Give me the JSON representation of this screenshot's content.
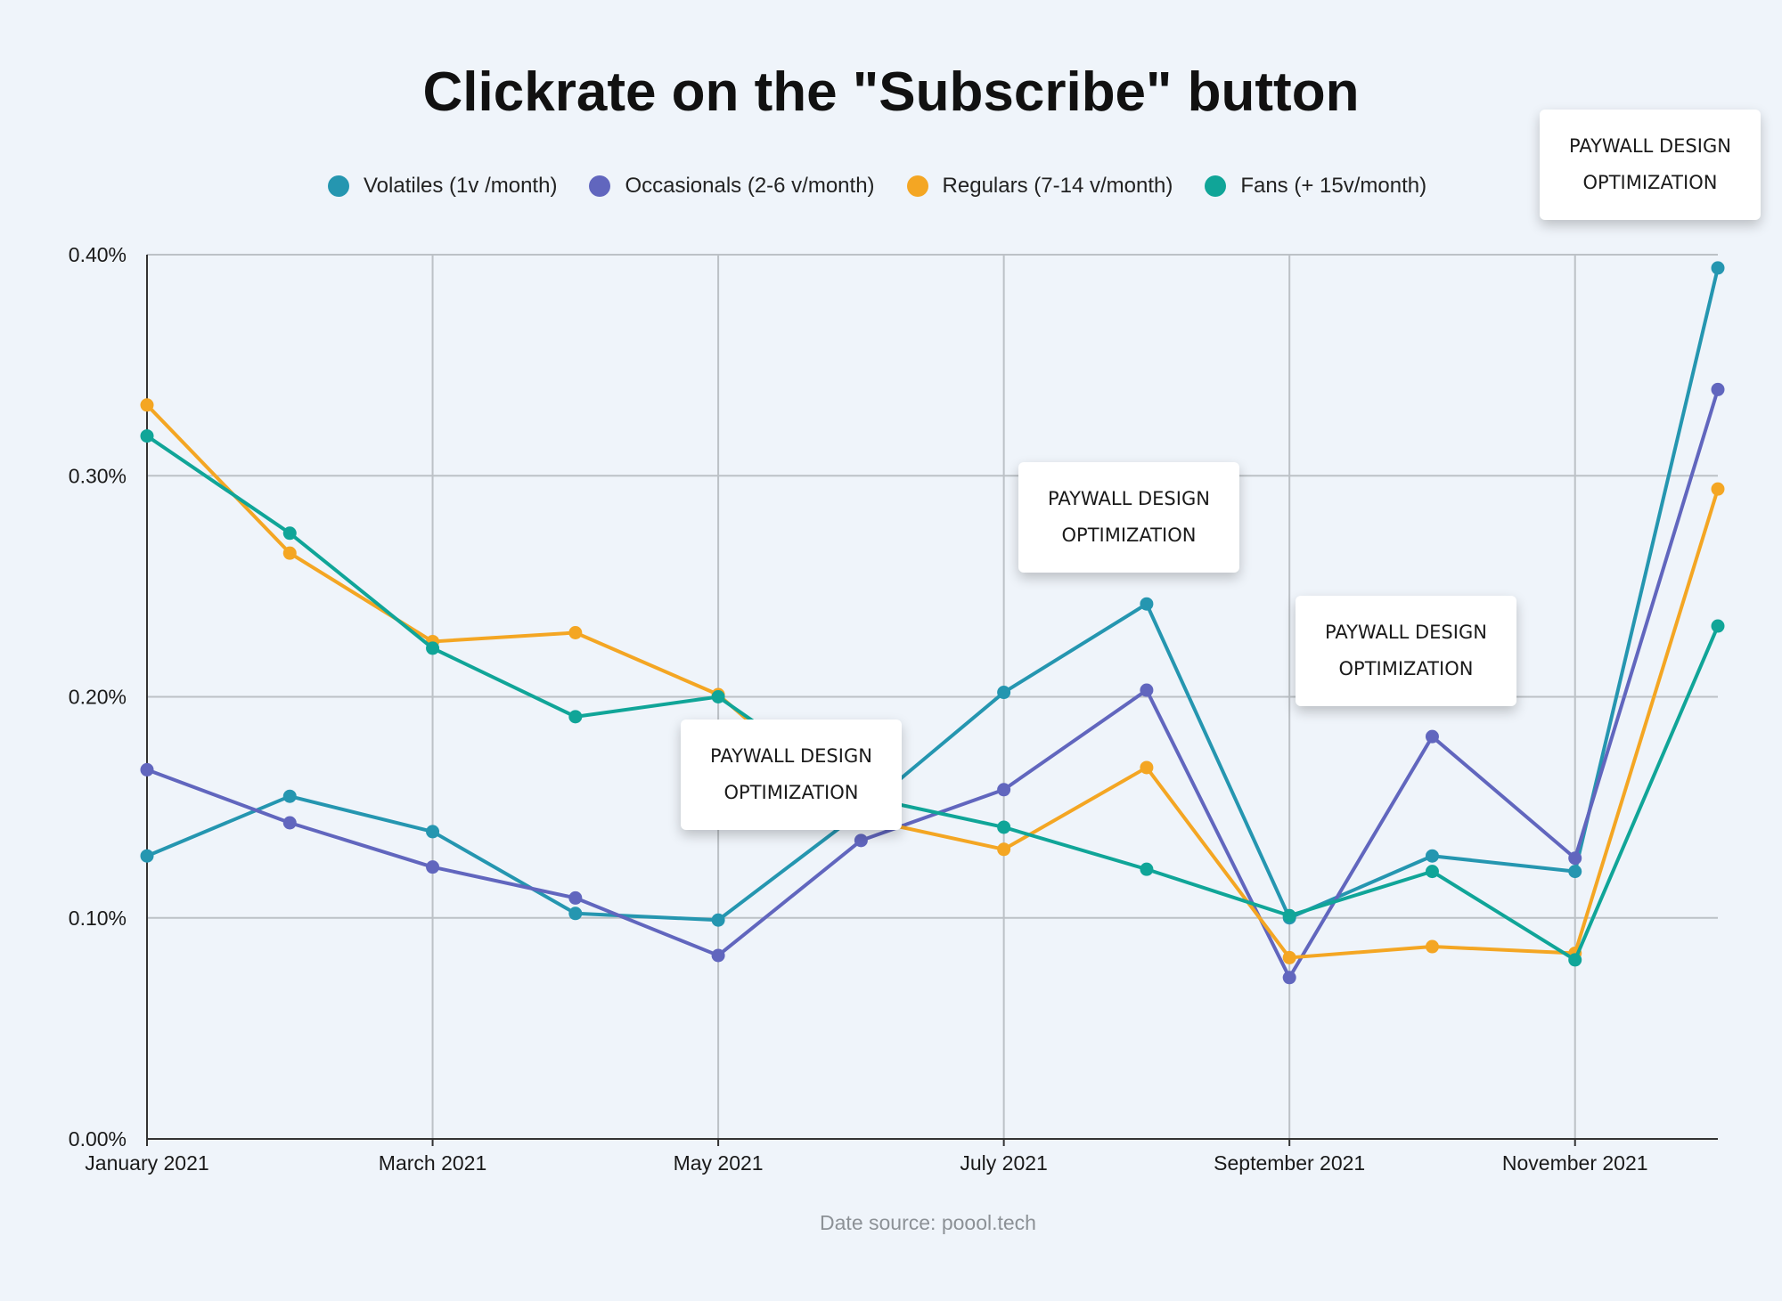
{
  "chart_data": {
    "type": "line",
    "title": "Clickrate on the \"Subscribe\" button",
    "x": [
      "2021-01",
      "2021-02",
      "2021-03",
      "2021-04",
      "2021-05",
      "2021-06",
      "2021-07",
      "2021-08",
      "2021-09",
      "2021-10",
      "2021-11",
      "2021-12"
    ],
    "x_tick_labels": [
      {
        "x": "2021-01",
        "label": "January 2021"
      },
      {
        "x": "2021-03",
        "label": "March 2021"
      },
      {
        "x": "2021-05",
        "label": "May 2021"
      },
      {
        "x": "2021-07",
        "label": "July 2021"
      },
      {
        "x": "2021-09",
        "label": "September 2021"
      },
      {
        "x": "2021-11",
        "label": "November 2021"
      }
    ],
    "y_ticks": [
      {
        "value": 0.0,
        "label": "0.00%"
      },
      {
        "value": 0.1,
        "label": "0.10%"
      },
      {
        "value": 0.2,
        "label": "0.20%"
      },
      {
        "value": 0.3,
        "label": "0.30%"
      },
      {
        "value": 0.4,
        "label": "0.40%"
      }
    ],
    "ylim": [
      0,
      0.4
    ],
    "y_unit": "%",
    "grid": true,
    "legend_position": "top",
    "series": [
      {
        "name": "Volatiles (1v /month)",
        "color": "#2596b0",
        "values": [
          0.128,
          0.155,
          0.139,
          0.102,
          0.099,
          0.148,
          0.202,
          0.242,
          0.1,
          0.128,
          0.121,
          0.394
        ]
      },
      {
        "name": "Occasionals (2-6 v/month)",
        "color": "#6166be",
        "values": [
          0.167,
          0.143,
          0.123,
          0.109,
          0.083,
          0.135,
          0.158,
          0.203,
          0.073,
          0.182,
          0.127,
          0.339
        ]
      },
      {
        "name": "Regulars (7-14 v/month)",
        "color": "#f4a623",
        "values": [
          0.332,
          0.265,
          0.225,
          0.229,
          0.201,
          0.145,
          0.131,
          0.168,
          0.082,
          0.087,
          0.084,
          0.294
        ]
      },
      {
        "name": "Fans (+ 15v/month)",
        "color": "#10a598",
        "values": [
          0.318,
          0.274,
          0.222,
          0.191,
          0.2,
          0.155,
          0.141,
          0.122,
          0.101,
          0.121,
          0.081,
          0.232
        ]
      }
    ],
    "annotations": [
      {
        "x": "2021-05",
        "text": "PAYWALL DESIGN\nOPTIMIZATION"
      },
      {
        "x": "2021-08",
        "text": "PAYWALL DESIGN\nOPTIMIZATION"
      },
      {
        "x": "2021-10",
        "text": "PAYWALL DESIGN\nOPTIMIZATION"
      },
      {
        "x": "2021-12",
        "text": "PAYWALL DESIGN\nOPTIMIZATION"
      }
    ],
    "source": "Date source: poool.tech"
  }
}
